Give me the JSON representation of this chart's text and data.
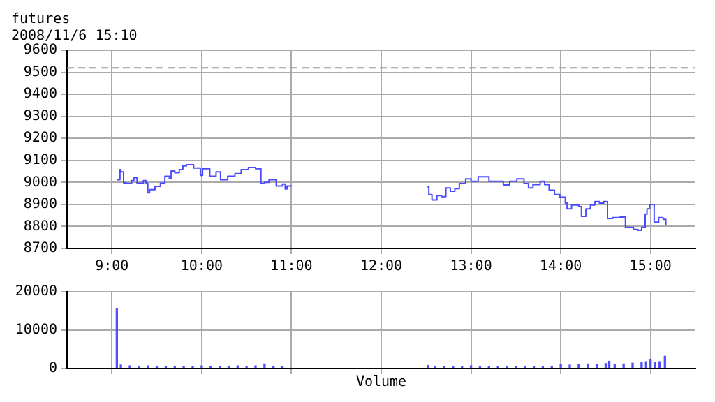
{
  "chart_data": [
    {
      "type": "step",
      "title": "futures",
      "subtitle": "2008/11/6 15:10",
      "x": [
        9.055,
        9.09,
        9.1,
        9.13,
        9.16,
        9.22,
        9.245,
        9.28,
        9.35,
        9.38,
        9.4,
        9.42,
        9.48,
        9.54,
        9.59,
        9.64,
        9.66,
        9.7,
        9.75,
        9.79,
        9.83,
        9.91,
        9.985,
        10.01,
        10.09,
        10.16,
        10.21,
        10.29,
        10.37,
        10.44,
        10.52,
        10.6,
        10.66,
        10.7,
        10.75,
        10.83,
        10.9,
        10.93,
        10.95,
        11.0,
        11.5,
        12.515,
        12.53,
        12.565,
        12.62,
        12.67,
        12.72,
        12.77,
        12.82,
        12.87,
        12.94,
        13.0,
        13.08,
        13.15,
        13.2,
        13.28,
        13.36,
        13.43,
        13.51,
        13.59,
        13.64,
        13.69,
        13.77,
        13.82,
        13.87,
        13.93,
        13.99,
        14.05,
        14.07,
        14.12,
        14.2,
        14.23,
        14.28,
        14.33,
        14.38,
        14.43,
        14.48,
        14.52,
        14.58,
        14.66,
        14.72,
        14.81,
        14.86,
        14.9,
        14.94,
        14.96,
        14.99,
        15.04,
        15.09,
        15.14,
        15.17
      ],
      "series": [
        {
          "color": "#4a4aff",
          "values": [
            9012,
            9058,
            9048,
            8998,
            8995,
            9008,
            9022,
            8996,
            9008,
            8996,
            8953,
            8967,
            8982,
            8996,
            9028,
            9018,
            9052,
            9044,
            9058,
            9075,
            9080,
            9065,
            9032,
            9062,
            9028,
            9048,
            9012,
            9028,
            9040,
            9058,
            9068,
            9062,
            8995,
            9000,
            9012,
            8984,
            8992,
            8970,
            8984,
            8982,
            null,
            8980,
            8945,
            8920,
            8940,
            8935,
            8975,
            8960,
            8972,
            8995,
            9016,
            9005,
            9026,
            9026,
            9005,
            9005,
            8988,
            9005,
            9016,
            8995,
            8975,
            8990,
            9005,
            8990,
            8965,
            8945,
            8933,
            8906,
            8880,
            8897,
            8890,
            8846,
            8880,
            8897,
            8913,
            8906,
            8913,
            8836,
            8840,
            8843,
            8796,
            8786,
            8782,
            8796,
            8856,
            8880,
            8900,
            8820,
            8840,
            8832,
            8806
          ]
        }
      ],
      "xlim": [
        8.5,
        15.5
      ],
      "xticks": [
        {
          "value": 9,
          "label": "9:00"
        },
        {
          "value": 10,
          "label": "10:00"
        },
        {
          "value": 11,
          "label": "11:00"
        },
        {
          "value": 12,
          "label": "12:00"
        },
        {
          "value": 13,
          "label": "13:00"
        },
        {
          "value": 14,
          "label": "14:00"
        },
        {
          "value": 15,
          "label": "15:00"
        }
      ],
      "ylim": [
        8700,
        9600
      ],
      "yticks": [
        8700,
        8800,
        8900,
        9000,
        9100,
        9200,
        9300,
        9400,
        9500,
        9600
      ],
      "ref_lines": [
        {
          "axis": "y",
          "value": 9520,
          "color": "#999999",
          "line_style": "dashed"
        }
      ],
      "grid": true,
      "legend": false,
      "marker": "none"
    },
    {
      "type": "bar",
      "xlabel": "Volume",
      "x": [
        9.055,
        9.1,
        9.2,
        9.3,
        9.4,
        9.5,
        9.6,
        9.7,
        9.8,
        9.9,
        10.0,
        10.1,
        10.2,
        10.3,
        10.4,
        10.5,
        10.6,
        10.7,
        10.8,
        10.9,
        12.52,
        12.6,
        12.7,
        12.8,
        12.9,
        13.0,
        13.1,
        13.2,
        13.3,
        13.4,
        13.5,
        13.6,
        13.7,
        13.8,
        13.9,
        14.0,
        14.1,
        14.2,
        14.3,
        14.4,
        14.5,
        14.54,
        14.6,
        14.7,
        14.8,
        14.9,
        14.95,
        15.0,
        15.05,
        15.1,
        15.16
      ],
      "series": [
        {
          "color": "#5050ff",
          "values": [
            15500,
            900,
            700,
            600,
            700,
            500,
            600,
            500,
            600,
            500,
            700,
            600,
            500,
            600,
            700,
            500,
            700,
            1200,
            600,
            500,
            800,
            500,
            600,
            500,
            600,
            700,
            500,
            500,
            600,
            500,
            500,
            600,
            500,
            500,
            600,
            1000,
            900,
            1100,
            1200,
            1000,
            1300,
            1900,
            1100,
            1200,
            1400,
            1500,
            1800,
            2400,
            1700,
            1800,
            3200
          ]
        }
      ],
      "xlim": [
        8.5,
        15.5
      ],
      "xticks": [
        9,
        10,
        11,
        12,
        13,
        14,
        15
      ],
      "ylim": [
        0,
        20000
      ],
      "yticks": [
        0,
        10000,
        20000
      ],
      "tick_labels": "y",
      "grid": true,
      "legend": false
    }
  ]
}
